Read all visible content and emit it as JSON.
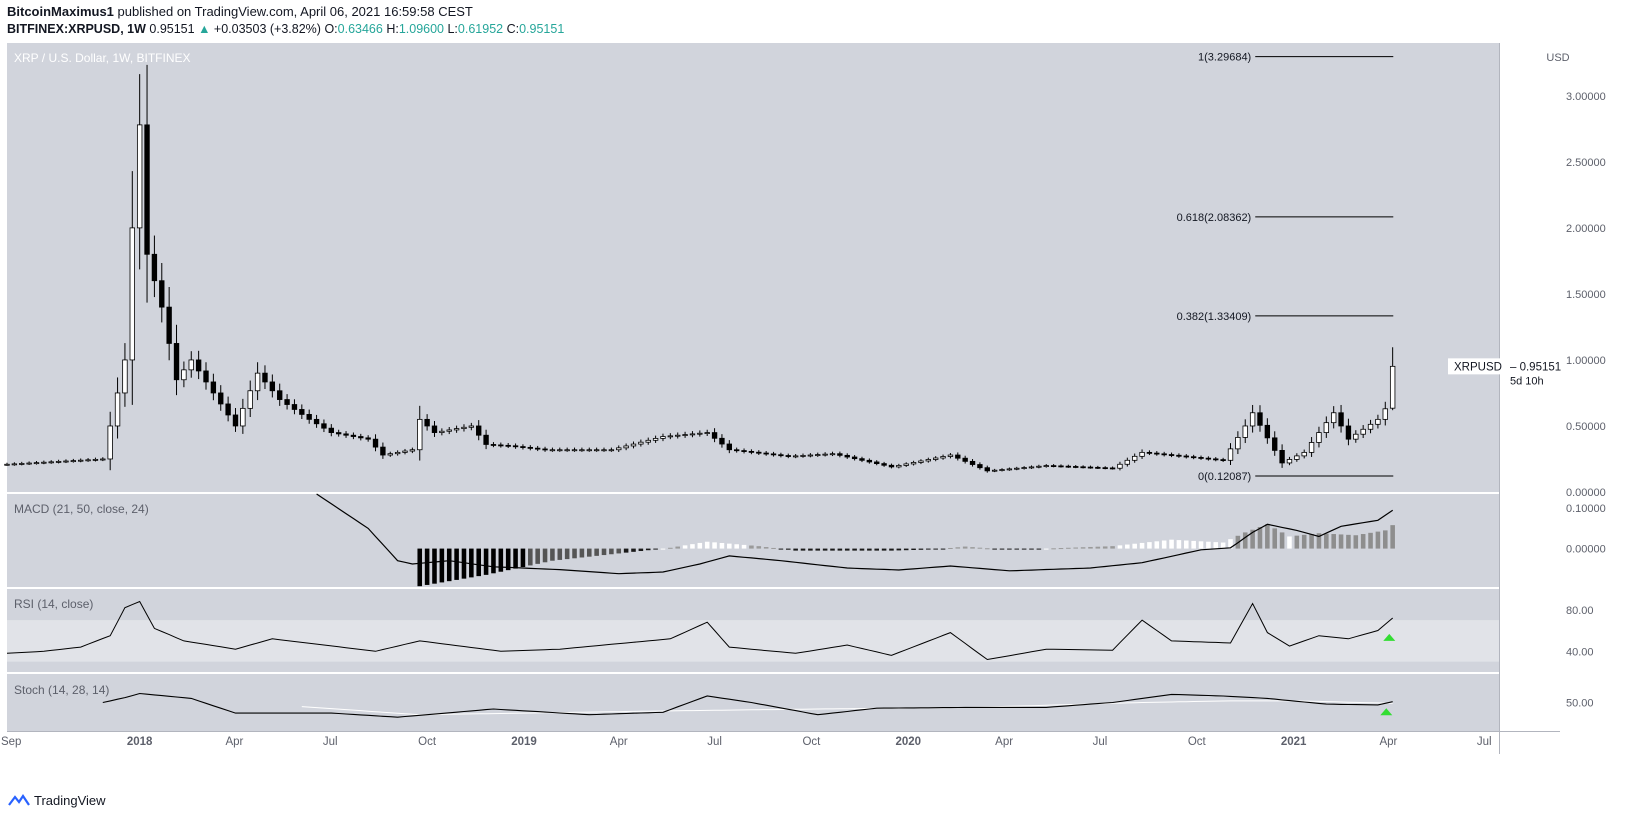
{
  "header": {
    "author": "BitcoinMaximus1",
    "published": "published on TradingView.com, April 06, 2021 16:59:58 CEST",
    "symbol": "BITFINEX:XRPUSD, 1W",
    "last": "0.95151",
    "change": "+0.03503 (+3.82%)",
    "o_label": "O:",
    "o": "0.63466",
    "h_label": "H:",
    "h": "1.09600",
    "l_label": "L:",
    "l": "0.61952",
    "c_label": "C:",
    "c": "0.95151"
  },
  "brand": "TradingView",
  "colors": {
    "panel": "#d1d4dc",
    "rsi_band": "#e1e3e8",
    "accent_green": "#26a69a",
    "signal_green": "#33dd33"
  },
  "chart_data": [
    {
      "type": "candlestick",
      "title": "XRP / U.S. Dollar, 1W, BITFINEX",
      "currency": "USD",
      "yticks": [
        "3.00000",
        "2.50000",
        "2.00000",
        "1.50000",
        "1.00000",
        "0.50000",
        "0.00000"
      ],
      "ytick_values": [
        3.0,
        2.5,
        2.0,
        1.5,
        1.0,
        0.5,
        0.0
      ],
      "ylim": [
        0,
        3.4
      ],
      "xticks": [
        "Sep",
        "2018",
        "Apr",
        "Jul",
        "Oct",
        "2019",
        "Apr",
        "Jul",
        "Oct",
        "2020",
        "Apr",
        "Jul",
        "Oct",
        "2021",
        "Apr",
        "Jul"
      ],
      "xtick_dates": [
        "2017-09-01",
        "2018-01-01",
        "2018-04-01",
        "2018-07-01",
        "2018-10-01",
        "2019-01-01",
        "2019-04-01",
        "2019-07-01",
        "2019-10-01",
        "2020-01-01",
        "2020-04-01",
        "2020-07-01",
        "2020-10-01",
        "2021-01-01",
        "2021-04-01",
        "2021-07-01"
      ],
      "x_range": [
        "2017-08-28",
        "2021-07-15"
      ],
      "close_anchors": [
        [
          "2017-08-28",
          0.21
        ],
        [
          "2017-11-27",
          0.25
        ],
        [
          "2017-12-11",
          0.75
        ],
        [
          "2017-12-18",
          1.0
        ],
        [
          "2017-12-25",
          2.0
        ],
        [
          "2018-01-01",
          2.78
        ],
        [
          "2018-01-08",
          1.8
        ],
        [
          "2018-01-22",
          1.4
        ],
        [
          "2018-02-05",
          0.85
        ],
        [
          "2018-02-19",
          1.0
        ],
        [
          "2018-03-12",
          0.75
        ],
        [
          "2018-04-02",
          0.5
        ],
        [
          "2018-04-23",
          0.9
        ],
        [
          "2018-05-14",
          0.7
        ],
        [
          "2018-06-11",
          0.55
        ],
        [
          "2018-07-02",
          0.45
        ],
        [
          "2018-08-06",
          0.4
        ],
        [
          "2018-08-20",
          0.28
        ],
        [
          "2018-09-17",
          0.32
        ],
        [
          "2018-09-24",
          0.55
        ],
        [
          "2018-10-08",
          0.45
        ],
        [
          "2018-11-12",
          0.5
        ],
        [
          "2018-11-26",
          0.36
        ],
        [
          "2018-12-17",
          0.35
        ],
        [
          "2019-01-21",
          0.32
        ],
        [
          "2019-03-25",
          0.32
        ],
        [
          "2019-05-13",
          0.42
        ],
        [
          "2019-06-24",
          0.45
        ],
        [
          "2019-07-15",
          0.32
        ],
        [
          "2019-09-09",
          0.27
        ],
        [
          "2019-10-21",
          0.29
        ],
        [
          "2019-12-16",
          0.19
        ],
        [
          "2020-02-10",
          0.28
        ],
        [
          "2020-03-16",
          0.16
        ],
        [
          "2020-05-11",
          0.2
        ],
        [
          "2020-07-13",
          0.18
        ],
        [
          "2020-08-10",
          0.3
        ],
        [
          "2020-10-26",
          0.24
        ],
        [
          "2020-11-16",
          0.5
        ],
        [
          "2020-11-23",
          0.6
        ],
        [
          "2020-12-21",
          0.22
        ],
        [
          "2021-01-11",
          0.3
        ],
        [
          "2021-02-08",
          0.6
        ],
        [
          "2021-02-22",
          0.4
        ],
        [
          "2021-03-22",
          0.55
        ],
        [
          "2021-03-29",
          0.63
        ],
        [
          "2021-04-05",
          0.95151
        ]
      ],
      "last_candle": {
        "date": "2021-04-05",
        "open": 0.63466,
        "high": 1.096,
        "low": 0.61952,
        "close": 0.95151
      },
      "price_tag": {
        "symbol": "XRPUSD",
        "value": "0.95151",
        "countdown": "5d 10h"
      },
      "fibonacci": [
        {
          "label": "1(3.29684)",
          "value": 3.29684
        },
        {
          "label": "0.618(2.08362)",
          "value": 2.08362
        },
        {
          "label": "0.382(1.33409)",
          "value": 1.33409
        },
        {
          "label": "0(0.12087)",
          "value": 0.12087
        }
      ],
      "fib_span": [
        "2020-11-16",
        "2021-03-29"
      ]
    },
    {
      "type": "histogram+line",
      "title": "MACD (21, 50, close, 24)",
      "yticks": [
        "0.10000",
        "0.00000"
      ],
      "ytick_values": [
        0.1,
        0.0
      ],
      "ylim": [
        -0.095,
        0.135
      ],
      "histogram_anchors": [
        [
          "2018-09-24",
          -0.093
        ],
        [
          "2018-11-26",
          -0.065
        ],
        [
          "2019-01-28",
          -0.03
        ],
        [
          "2019-04-29",
          -0.004
        ],
        [
          "2019-05-20",
          0.002
        ],
        [
          "2019-06-24",
          0.017
        ],
        [
          "2019-08-12",
          0.006
        ],
        [
          "2019-09-16",
          -0.005
        ],
        [
          "2019-12-16",
          -0.005
        ],
        [
          "2020-01-27",
          -0.002
        ],
        [
          "2020-02-24",
          0.005
        ],
        [
          "2020-03-30",
          -0.002
        ],
        [
          "2020-05-11",
          0.0
        ],
        [
          "2020-07-13",
          0.006
        ],
        [
          "2020-09-07",
          0.022
        ],
        [
          "2020-10-26",
          0.015
        ],
        [
          "2020-11-16",
          0.04
        ],
        [
          "2020-12-07",
          0.06
        ],
        [
          "2020-12-28",
          0.03
        ],
        [
          "2021-01-25",
          0.038
        ],
        [
          "2021-03-01",
          0.033
        ],
        [
          "2021-03-29",
          0.045
        ],
        [
          "2021-04-05",
          0.058
        ]
      ],
      "line_anchors": [
        [
          "2018-06-18",
          0.135
        ],
        [
          "2018-08-06",
          0.05
        ],
        [
          "2018-09-03",
          -0.03
        ],
        [
          "2018-09-17",
          -0.038
        ],
        [
          "2018-10-22",
          -0.03
        ],
        [
          "2018-12-03",
          -0.045
        ],
        [
          "2019-02-04",
          -0.052
        ],
        [
          "2019-04-01",
          -0.062
        ],
        [
          "2019-05-13",
          -0.058
        ],
        [
          "2019-06-17",
          -0.038
        ],
        [
          "2019-07-15",
          -0.018
        ],
        [
          "2019-09-02",
          -0.03
        ],
        [
          "2019-11-04",
          -0.048
        ],
        [
          "2019-12-23",
          -0.053
        ],
        [
          "2020-02-10",
          -0.043
        ],
        [
          "2020-04-06",
          -0.055
        ],
        [
          "2020-06-22",
          -0.048
        ],
        [
          "2020-08-10",
          -0.035
        ],
        [
          "2020-10-05",
          -0.003
        ],
        [
          "2020-11-02",
          0.002
        ],
        [
          "2020-11-23",
          0.04
        ],
        [
          "2020-12-07",
          0.06
        ],
        [
          "2021-01-04",
          0.045
        ],
        [
          "2021-01-25",
          0.03
        ],
        [
          "2021-02-15",
          0.055
        ],
        [
          "2021-03-22",
          0.07
        ],
        [
          "2021-04-05",
          0.095
        ]
      ]
    },
    {
      "type": "line",
      "title": "RSI (14, close)",
      "yticks": [
        "80.00",
        "40.00"
      ],
      "ytick_values": [
        80,
        40
      ],
      "ylim": [
        20,
        100
      ],
      "band": [
        30,
        70
      ],
      "anchors": [
        [
          "2017-08-28",
          38
        ],
        [
          "2017-10-02",
          40
        ],
        [
          "2017-11-06",
          44
        ],
        [
          "2017-12-04",
          55
        ],
        [
          "2017-12-18",
          82
        ],
        [
          "2018-01-01",
          88
        ],
        [
          "2018-01-15",
          62
        ],
        [
          "2018-02-12",
          50
        ],
        [
          "2018-04-02",
          42
        ],
        [
          "2018-05-07",
          52
        ],
        [
          "2018-08-13",
          40
        ],
        [
          "2018-09-24",
          50
        ],
        [
          "2018-12-10",
          40
        ],
        [
          "2019-02-04",
          42
        ],
        [
          "2019-05-20",
          52
        ],
        [
          "2019-06-24",
          68
        ],
        [
          "2019-07-15",
          44
        ],
        [
          "2019-09-16",
          38
        ],
        [
          "2019-11-04",
          46
        ],
        [
          "2019-12-16",
          36
        ],
        [
          "2020-02-10",
          58
        ],
        [
          "2020-03-16",
          32
        ],
        [
          "2020-05-11",
          42
        ],
        [
          "2020-07-13",
          41
        ],
        [
          "2020-08-10",
          70
        ],
        [
          "2020-09-07",
          50
        ],
        [
          "2020-11-02",
          48
        ],
        [
          "2020-11-23",
          86
        ],
        [
          "2020-12-07",
          58
        ],
        [
          "2020-12-28",
          45
        ],
        [
          "2021-01-25",
          55
        ],
        [
          "2021-02-22",
          52
        ],
        [
          "2021-03-22",
          60
        ],
        [
          "2021-04-05",
          72
        ]
      ],
      "signal": {
        "date": "2021-03-29",
        "value": 50,
        "shape": "triangle-up"
      }
    },
    {
      "type": "line",
      "title": "Stoch (14, 28, 14)",
      "yticks": [
        "50.00"
      ],
      "ytick_values": [
        50
      ],
      "ylim": [
        15,
        85
      ],
      "k_anchors": [
        [
          "2017-11-27",
          50
        ],
        [
          "2017-12-18",
          56
        ],
        [
          "2018-01-01",
          61
        ],
        [
          "2018-02-19",
          55
        ],
        [
          "2018-04-02",
          37
        ],
        [
          "2018-07-02",
          37
        ],
        [
          "2018-09-03",
          32
        ],
        [
          "2018-10-01",
          35
        ],
        [
          "2018-12-03",
          42
        ],
        [
          "2019-03-04",
          35
        ],
        [
          "2019-05-13",
          38
        ],
        [
          "2019-06-24",
          58
        ],
        [
          "2019-08-05",
          50
        ],
        [
          "2019-10-07",
          35
        ],
        [
          "2019-12-02",
          43
        ],
        [
          "2020-03-02",
          44
        ],
        [
          "2020-05-11",
          44
        ],
        [
          "2020-07-13",
          50
        ],
        [
          "2020-09-07",
          60
        ],
        [
          "2020-10-26",
          58
        ],
        [
          "2020-12-07",
          55
        ],
        [
          "2021-02-01",
          48
        ],
        [
          "2021-03-22",
          47
        ],
        [
          "2021-04-05",
          51
        ]
      ],
      "d_anchors": [
        [
          "2018-06-04",
          45
        ],
        [
          "2018-09-24",
          35
        ],
        [
          "2019-06-03",
          40
        ],
        [
          "2019-10-07",
          42
        ],
        [
          "2020-03-02",
          44
        ],
        [
          "2020-08-10",
          50
        ],
        [
          "2020-11-02",
          52
        ],
        [
          "2021-01-04",
          52
        ],
        [
          "2021-04-05",
          49
        ]
      ],
      "signal": {
        "date": "2021-03-29",
        "value": 38,
        "shape": "triangle-up"
      }
    }
  ]
}
